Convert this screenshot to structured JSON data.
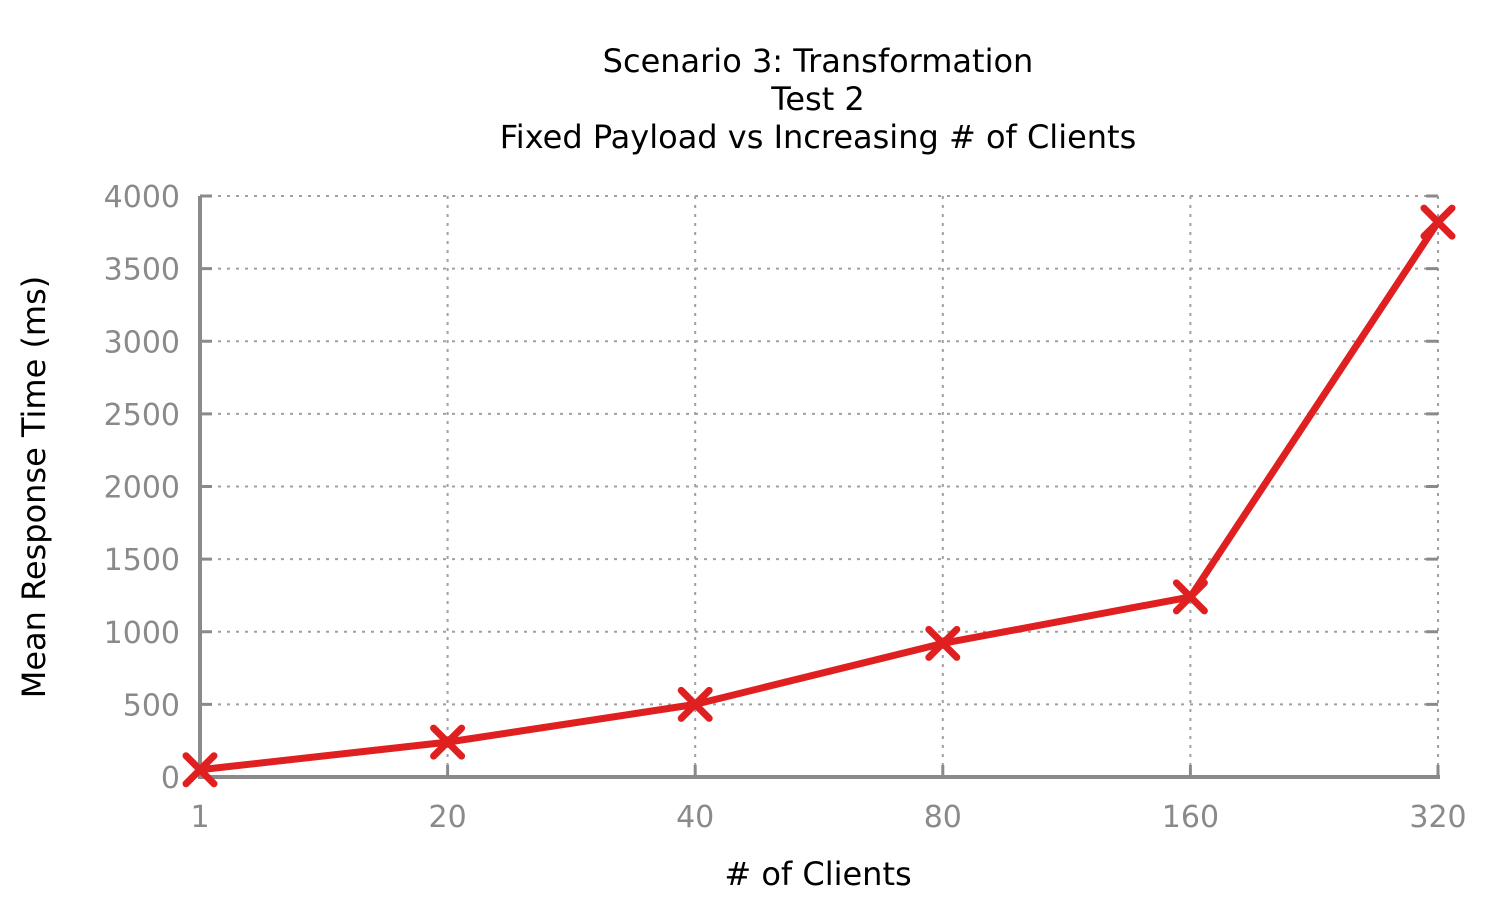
{
  "chart_data": {
    "type": "line",
    "title_lines": [
      "Scenario 3: Transformation",
      "Test 2",
      "Fixed Payload vs Increasing # of Clients"
    ],
    "xlabel": "# of Clients",
    "ylabel": "Mean Response Time (ms)",
    "categories": [
      "1",
      "20",
      "40",
      "80",
      "160",
      "320"
    ],
    "y_ticks": [
      0,
      500,
      1000,
      1500,
      2000,
      2500,
      3000,
      3500,
      4000
    ],
    "ylim": [
      0,
      4000
    ],
    "grid": true,
    "legend": "none",
    "series": [
      {
        "values": [
          50,
          240,
          500,
          920,
          1240,
          3820
        ],
        "color": "#e02020",
        "marker": "x"
      }
    ]
  }
}
